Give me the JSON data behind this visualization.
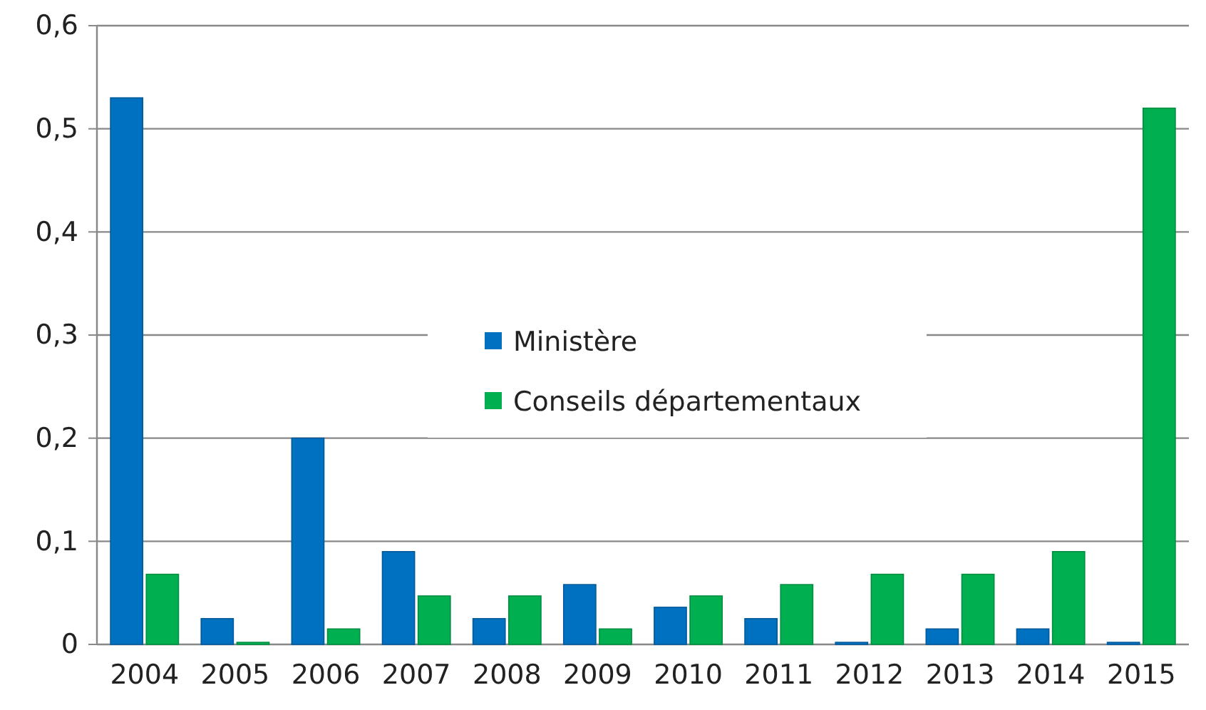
{
  "chart_data": {
    "type": "bar",
    "categories": [
      "2004",
      "2005",
      "2006",
      "2007",
      "2008",
      "2009",
      "2010",
      "2011",
      "2012",
      "2013",
      "2014",
      "2015"
    ],
    "series": [
      {
        "name": "Ministère",
        "color": "#0070c0",
        "values": [
          0.53,
          0.025,
          0.2,
          0.09,
          0.025,
          0.058,
          0.036,
          0.025,
          0.002,
          0.015,
          0.015,
          0.002
        ]
      },
      {
        "name": "Conseils départementaux",
        "color": "#00b050",
        "values": [
          0.068,
          0.002,
          0.015,
          0.047,
          0.047,
          0.015,
          0.047,
          0.058,
          0.068,
          0.068,
          0.09,
          0.52
        ]
      }
    ],
    "ylim": [
      0,
      0.6
    ],
    "yticks": [
      {
        "value": 0,
        "label": "0"
      },
      {
        "value": 0.1,
        "label": "0,1"
      },
      {
        "value": 0.2,
        "label": "0,2"
      },
      {
        "value": 0.3,
        "label": "0,3"
      },
      {
        "value": 0.4,
        "label": "0,4"
      },
      {
        "value": 0.5,
        "label": "0,5"
      },
      {
        "value": 0.6,
        "label": "0,6"
      }
    ],
    "grid": "y",
    "legend": "center"
  }
}
